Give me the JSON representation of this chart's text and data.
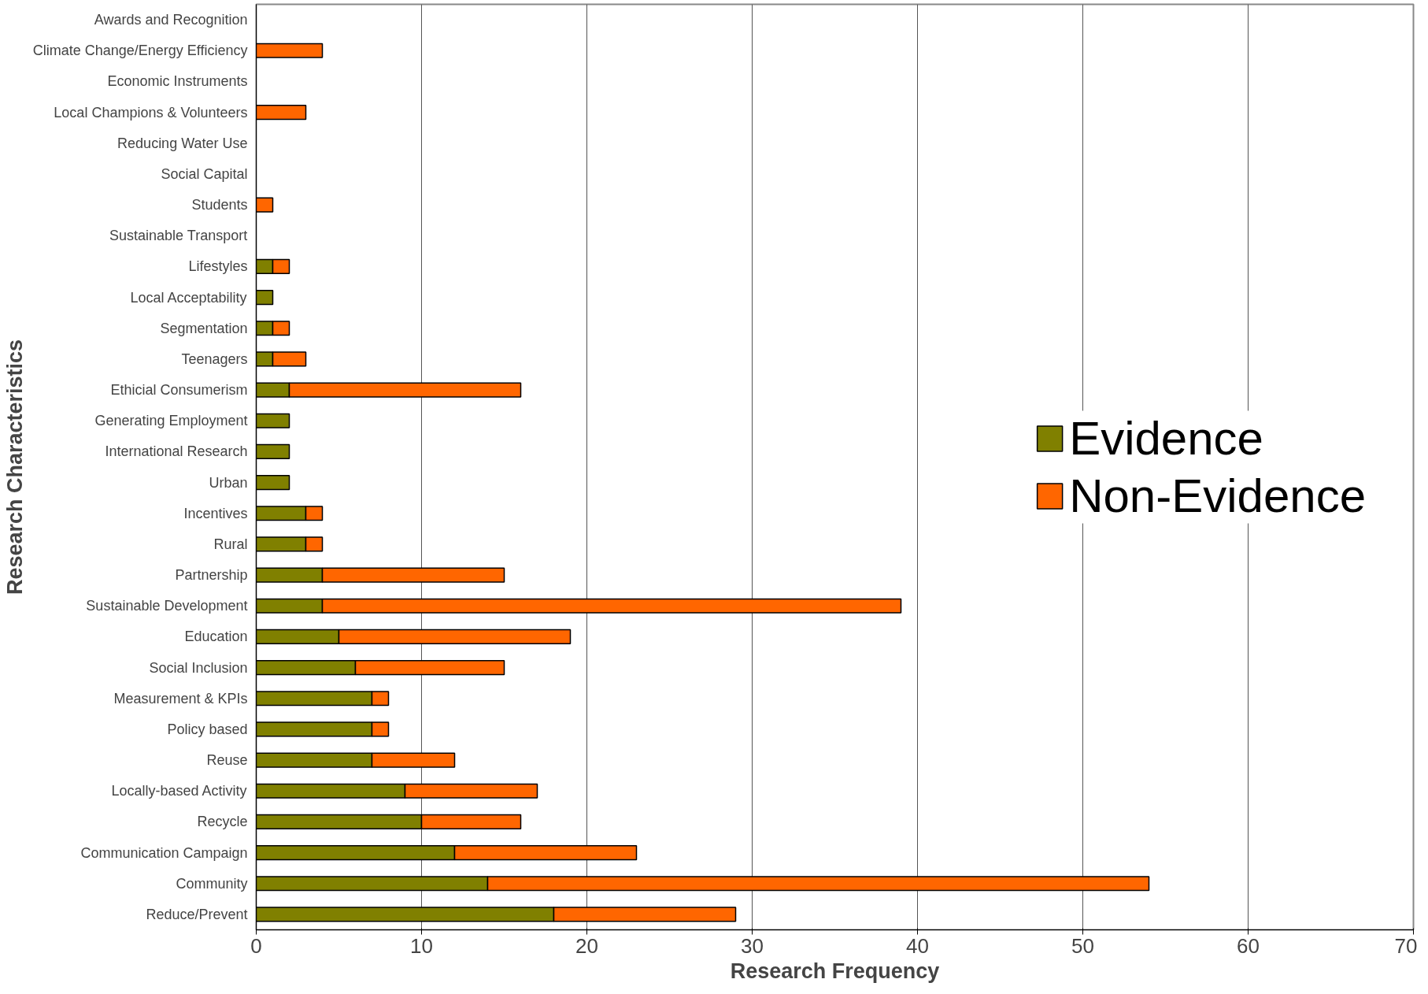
{
  "chart_data": {
    "type": "bar",
    "orientation": "horizontal",
    "stacked": true,
    "xlabel": "Research Frequency",
    "ylabel": "Research Characteristics",
    "categories": [
      "Awards and Recognition",
      "Climate Change/Energy Efficiency",
      "Economic Instruments",
      "Local Champions & Volunteers",
      "Reducing Water Use",
      "Social Capital",
      "Students",
      "Sustainable Transport",
      "Lifestyles",
      "Local Acceptability",
      "Segmentation",
      "Teenagers",
      "Ethicial Consumerism",
      "Generating Employment",
      "International Research",
      "Urban",
      "Incentives",
      "Rural",
      "Partnership",
      "Sustainable Development",
      "Education",
      "Social Inclusion",
      "Measurement & KPIs",
      "Policy based",
      "Reuse",
      "Locally-based Activity",
      "Recycle",
      "Communication Campaign",
      "Community",
      "Reduce/Prevent"
    ],
    "series": [
      {
        "name": "Evidence",
        "color": "#808000",
        "values": [
          0,
          0,
          0,
          0,
          0,
          0,
          0,
          0,
          1,
          1,
          1,
          1,
          2,
          2,
          2,
          2,
          3,
          3,
          4,
          4,
          5,
          6,
          7,
          7,
          7,
          9,
          10,
          12,
          14,
          18
        ]
      },
      {
        "name": "Non-Evidence",
        "color": "#ff6600",
        "values": [
          0,
          4,
          0,
          3,
          0,
          0,
          1,
          0,
          1,
          0,
          1,
          2,
          14,
          0,
          0,
          0,
          1,
          1,
          11,
          35,
          14,
          9,
          1,
          1,
          5,
          8,
          6,
          11,
          40,
          11
        ]
      }
    ],
    "xlim": [
      0,
      70
    ],
    "xticks": [
      0,
      10,
      20,
      30,
      40,
      50,
      60,
      70
    ],
    "grid": "x",
    "legend": "right"
  }
}
